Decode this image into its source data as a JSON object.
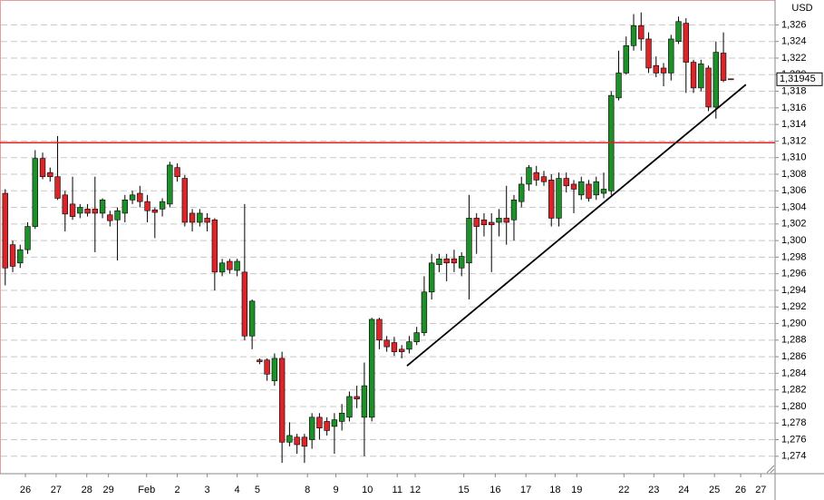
{
  "chart_data": {
    "type": "candlestick",
    "currency": "USD",
    "open": [
      1.3057,
      1.2995,
      1.2973,
      1.2989,
      1.3017,
      1.3099,
      1.3082,
      1.3077,
      1.3055,
      1.3044,
      1.3033,
      1.3038,
      1.3038,
      1.3033,
      1.3031,
      1.3025,
      1.3033,
      1.3049,
      1.3057,
      1.3047,
      1.3037,
      1.3038,
      1.3044,
      1.3088,
      1.3075,
      1.3033,
      1.3022,
      1.3027,
      1.3025,
      1.2962,
      1.2975,
      1.2964,
      1.2962,
      1.2885,
      1.2856,
      1.2856,
      1.2831,
      1.2858,
      1.2757,
      1.2763,
      1.2763,
      1.276,
      1.2787,
      1.2782,
      1.2776,
      1.2782,
      1.2787,
      1.2812,
      1.2787,
      1.2787,
      1.2905,
      1.288,
      1.2877,
      1.2869,
      1.2869,
      1.2878,
      1.2889,
      1.2938,
      1.2971,
      1.2978,
      1.2978,
      1.2967,
      1.2973,
      1.3027,
      1.3025,
      1.3022,
      1.3022,
      1.3027,
      1.3025,
      1.3047,
      1.3068,
      1.3082,
      1.3077,
      1.3073,
      1.3027,
      1.3075,
      1.3068,
      1.3055,
      1.3068,
      1.3055,
      1.3057,
      1.306,
      1.3172,
      1.3202,
      1.3235,
      1.3259,
      1.3243,
      1.3211,
      1.3208,
      1.3202,
      1.324,
      1.3262,
      1.3215,
      1.3184,
      1.3208,
      1.3161,
      1.3226,
      1.3195
    ],
    "high": [
      1.3062,
      1.3,
      1.2995,
      1.3022,
      1.3109,
      1.3106,
      1.3088,
      1.3126,
      1.306,
      1.3077,
      1.3044,
      1.3044,
      1.3077,
      1.3051,
      1.3036,
      1.304,
      1.3055,
      1.306,
      1.3066,
      1.3055,
      1.304,
      1.3051,
      1.3095,
      1.3093,
      1.3079,
      1.3038,
      1.3038,
      1.3033,
      1.3027,
      1.2978,
      1.2978,
      1.2978,
      1.3044,
      1.2929,
      1.2858,
      1.2858,
      1.2864,
      1.2866,
      1.2781,
      1.2767,
      1.2767,
      1.2792,
      1.2792,
      1.2787,
      1.2792,
      1.2803,
      1.2818,
      1.2825,
      1.2853,
      1.2907,
      1.2907,
      1.2885,
      1.2884,
      1.2874,
      1.2885,
      1.2896,
      1.2957,
      1.2984,
      1.2984,
      1.2984,
      1.2989,
      1.2986,
      1.3055,
      1.3033,
      1.3033,
      1.3033,
      1.3038,
      1.3066,
      1.3055,
      1.3077,
      1.3091,
      1.309,
      1.3084,
      1.308,
      1.3082,
      1.3082,
      1.3073,
      1.3077,
      1.3073,
      1.3077,
      1.3082,
      1.318,
      1.3229,
      1.3246,
      1.3273,
      1.3275,
      1.3251,
      1.3222,
      1.3214,
      1.3248,
      1.327,
      1.3268,
      1.3218,
      1.3218,
      1.3211,
      1.324,
      1.3251,
      1.3195
    ],
    "low": [
      1.2946,
      1.2962,
      1.2967,
      1.2984,
      1.3014,
      1.3074,
      1.3071,
      1.3049,
      1.3011,
      1.3025,
      1.3027,
      1.3029,
      1.2986,
      1.3027,
      1.3017,
      1.2976,
      1.3022,
      1.3044,
      1.304,
      1.3022,
      1.3003,
      1.3029,
      1.304,
      1.3071,
      1.3017,
      1.3011,
      1.3017,
      1.3011,
      1.294,
      1.2957,
      1.296,
      1.2957,
      1.288,
      1.2869,
      1.2851,
      1.2831,
      1.2825,
      1.2732,
      1.2752,
      1.2743,
      1.2732,
      1.2749,
      1.276,
      1.2765,
      1.2743,
      1.2771,
      1.2782,
      1.2798,
      1.274,
      1.2782,
      1.2869,
      1.2866,
      1.2861,
      1.2858,
      1.2864,
      1.2874,
      1.2885,
      1.2929,
      1.2962,
      1.2951,
      1.2962,
      1.2957,
      1.2929,
      1.2984,
      1.3005,
      1.2962,
      1.3005,
      1.2995,
      1.3,
      1.304,
      1.306,
      1.3066,
      1.3066,
      1.3017,
      1.3017,
      1.3058,
      1.3033,
      1.3049,
      1.3047,
      1.3049,
      1.3051,
      1.3055,
      1.3169,
      1.32,
      1.3229,
      1.3229,
      1.3202,
      1.3197,
      1.3186,
      1.3193,
      1.3237,
      1.3178,
      1.3178,
      1.318,
      1.3156,
      1.3147,
      1.3191,
      1.3194
    ],
    "close": [
      1.2967,
      1.2969,
      1.2989,
      1.3017,
      1.3099,
      1.3077,
      1.3077,
      1.3051,
      1.3032,
      1.3029,
      1.304,
      1.3033,
      1.3033,
      1.3049,
      1.3024,
      1.3036,
      1.3049,
      1.3055,
      1.3047,
      1.3036,
      1.3034,
      1.3047,
      1.3091,
      1.3077,
      1.3022,
      1.3022,
      1.3033,
      1.3022,
      1.2962,
      1.2973,
      1.2965,
      1.2975,
      1.2885,
      1.2927,
      1.2854,
      1.2839,
      1.2858,
      1.2757,
      1.2765,
      1.2754,
      1.2752,
      1.2787,
      1.2774,
      1.2771,
      1.2784,
      1.2792,
      1.2812,
      1.2809,
      1.2825,
      1.2905,
      1.288,
      1.2872,
      1.2866,
      1.2866,
      1.2878,
      1.2889,
      1.2938,
      1.2973,
      1.2978,
      1.2973,
      1.2973,
      1.2981,
      1.3027,
      1.3017,
      1.3019,
      1.3019,
      1.3027,
      1.3022,
      1.3049,
      1.3068,
      1.3088,
      1.3073,
      1.3071,
      1.3027,
      1.3075,
      1.3066,
      1.3062,
      1.3071,
      1.3051,
      1.3071,
      1.3062,
      1.3175,
      1.3202,
      1.3235,
      1.3259,
      1.3243,
      1.3208,
      1.3202,
      1.3202,
      1.3243,
      1.3264,
      1.3215,
      1.3184,
      1.3213,
      1.3161,
      1.3227,
      1.3193,
      1.31945
    ],
    "up_color": "#1f8f2a",
    "down_color": "#d8262b",
    "xlim": [
      -0.7,
      102.9
    ],
    "xticks": [
      {
        "value": 2.7,
        "label": "26"
      },
      {
        "value": 6.8,
        "label": "27"
      },
      {
        "value": 10.9,
        "label": "28"
      },
      {
        "value": 13.8,
        "label": "29"
      },
      {
        "value": 18.9,
        "label": "Feb"
      },
      {
        "value": 23.0,
        "label": "2"
      },
      {
        "value": 27.0,
        "label": "3"
      },
      {
        "value": 31.0,
        "label": "4"
      },
      {
        "value": 33.7,
        "label": "5"
      },
      {
        "value": 40.4,
        "label": "8"
      },
      {
        "value": 44.2,
        "label": "9"
      },
      {
        "value": 48.4,
        "label": "10"
      },
      {
        "value": 52.4,
        "label": "11"
      },
      {
        "value": 54.8,
        "label": "12"
      },
      {
        "value": 61.3,
        "label": "15"
      },
      {
        "value": 65.5,
        "label": "16"
      },
      {
        "value": 69.6,
        "label": "17"
      },
      {
        "value": 73.5,
        "label": "18"
      },
      {
        "value": 76.4,
        "label": "19"
      },
      {
        "value": 82.7,
        "label": "22"
      },
      {
        "value": 86.7,
        "label": "23"
      },
      {
        "value": 90.7,
        "label": "24"
      },
      {
        "value": 94.8,
        "label": "25"
      },
      {
        "value": 98.3,
        "label": "26"
      },
      {
        "value": 101.0,
        "label": "27"
      }
    ],
    "ylim": [
      1.2719,
      1.329
    ],
    "yticks": [
      {
        "value": 1.274,
        "label": "1,274"
      },
      {
        "value": 1.276,
        "label": "1,276"
      },
      {
        "value": 1.278,
        "label": "1,278"
      },
      {
        "value": 1.28,
        "label": "1,280"
      },
      {
        "value": 1.282,
        "label": "1,282"
      },
      {
        "value": 1.284,
        "label": "1,284"
      },
      {
        "value": 1.286,
        "label": "1,286"
      },
      {
        "value": 1.288,
        "label": "1,288"
      },
      {
        "value": 1.29,
        "label": "1,290"
      },
      {
        "value": 1.292,
        "label": "1,292"
      },
      {
        "value": 1.294,
        "label": "1,294"
      },
      {
        "value": 1.296,
        "label": "1,296"
      },
      {
        "value": 1.298,
        "label": "1,298"
      },
      {
        "value": 1.3,
        "label": "1,300"
      },
      {
        "value": 1.302,
        "label": "1,302"
      },
      {
        "value": 1.304,
        "label": "1,304"
      },
      {
        "value": 1.306,
        "label": "1,306"
      },
      {
        "value": 1.308,
        "label": "1,308"
      },
      {
        "value": 1.31,
        "label": "1,310"
      },
      {
        "value": 1.312,
        "label": "1,312"
      },
      {
        "value": 1.314,
        "label": "1,314"
      },
      {
        "value": 1.316,
        "label": "1,316"
      },
      {
        "value": 1.318,
        "label": "1,318"
      },
      {
        "value": 1.32,
        "label": "1,320"
      },
      {
        "value": 1.322,
        "label": "1,322"
      },
      {
        "value": 1.324,
        "label": "1,324"
      },
      {
        "value": 1.326,
        "label": "1,326"
      }
    ],
    "grid": true,
    "hline": {
      "value": 1.3118,
      "color": "#e02020"
    },
    "trendline": {
      "x": [
        53.7,
        99.0
      ],
      "y": [
        1.2849,
        1.3188
      ],
      "color": "#000000"
    },
    "last_price": {
      "value": 1.31945,
      "label": "1,31945"
    }
  }
}
